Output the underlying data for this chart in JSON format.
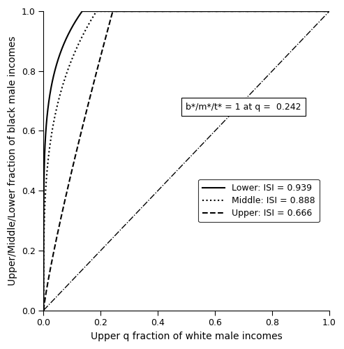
{
  "title": "",
  "xlabel": "Upper q fraction of white male incomes",
  "ylabel": "Upper/Middle/Lower fraction of black male incomes",
  "xlim": [
    0.0,
    1.0
  ],
  "ylim": [
    0.0,
    1.0
  ],
  "xticks": [
    0.0,
    0.2,
    0.4,
    0.6,
    0.8,
    1.0
  ],
  "yticks": [
    0.0,
    0.2,
    0.4,
    0.6,
    0.8,
    1.0
  ],
  "q_cross": 0.242,
  "annotation_text": "b*/m*/t* = 1 at q =  0.242",
  "lower_ISI": 0.939,
  "middle_ISI": 0.888,
  "upper_ISI": 0.666,
  "lower_label": "Lower: ISI = 0.939",
  "middle_label": "Middle: ISI = 0.888",
  "upper_label": "Upper: ISI = 0.666",
  "line_color": "#000000",
  "bg_color": "#ffffff",
  "alpha_lower": 0.18,
  "alpha_middle": 0.28,
  "alpha_upper": 0.85,
  "q_max_lower": 0.135,
  "q_max_middle": 0.185,
  "q_max_upper": 0.242,
  "figsize": [
    4.93,
    5.0
  ],
  "dpi": 100
}
